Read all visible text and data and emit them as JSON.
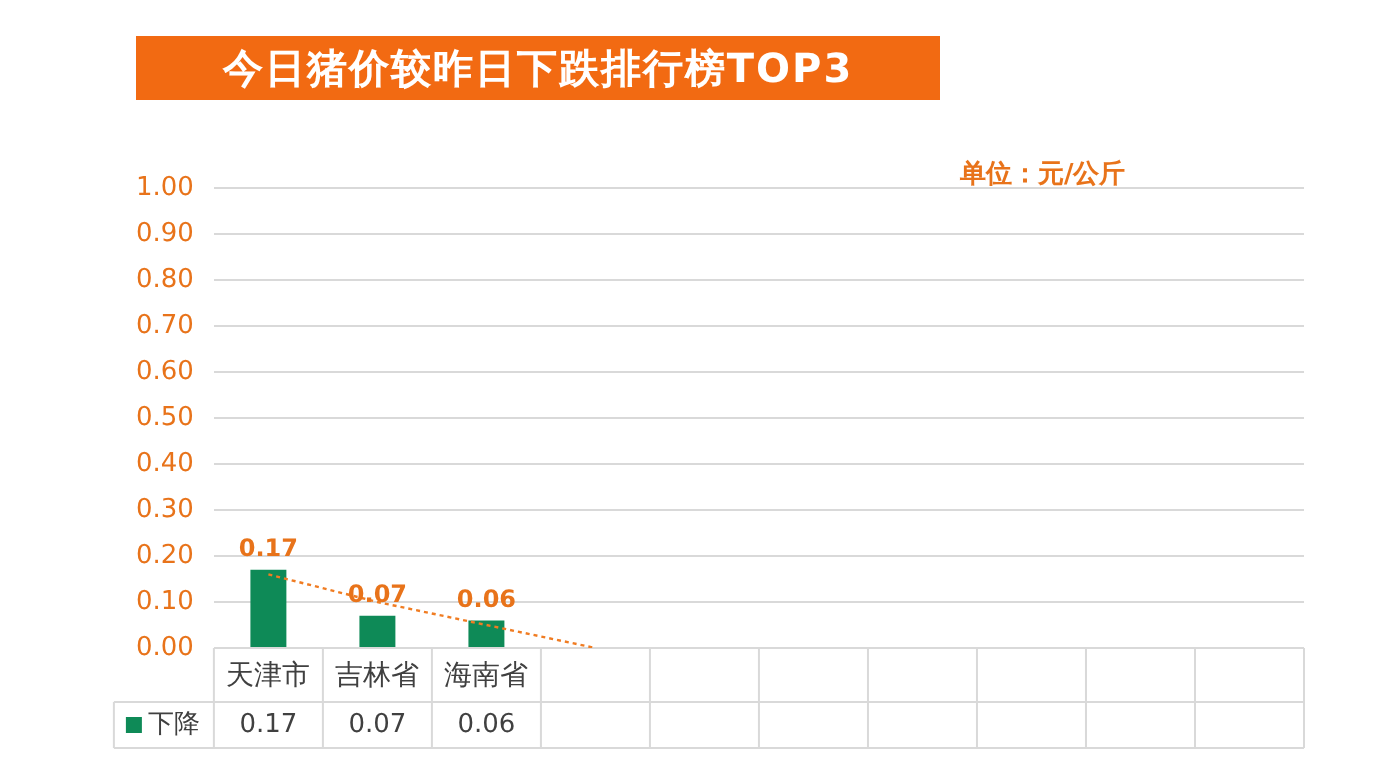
{
  "chart_data": {
    "type": "bar",
    "title": "今日猪价较昨日下跌排行榜TOP3",
    "annotations": [
      "单位：元/公斤"
    ],
    "categories": [
      "天津市",
      "吉林省",
      "海南省",
      null,
      null,
      null,
      null,
      null,
      null,
      null
    ],
    "series": [
      {
        "name": "下降",
        "color": "#0e8a57",
        "values": [
          0.17,
          0.07,
          0.06,
          null,
          null,
          null,
          null,
          null,
          null,
          null
        ],
        "value_labels": [
          "0.17",
          "0.07",
          "0.06",
          null,
          null,
          null,
          null,
          null,
          null,
          null
        ]
      },
      {
        "type": "line",
        "color": "#f07c22",
        "line_style": "dotted",
        "marker": "none",
        "values": [
          0.16,
          0.1,
          0.05,
          0,
          null,
          null,
          null,
          null,
          null,
          null
        ]
      }
    ],
    "ylim": [
      0,
      1
    ],
    "yticks": [
      {
        "value": 0,
        "label": "0.00"
      },
      {
        "value": 0.1,
        "label": "0.10"
      },
      {
        "value": 0.2,
        "label": "0.20"
      },
      {
        "value": 0.3,
        "label": "0.30"
      },
      {
        "value": 0.4,
        "label": "0.40"
      },
      {
        "value": 0.5,
        "label": "0.50"
      },
      {
        "value": 0.6,
        "label": "0.60"
      },
      {
        "value": 0.7,
        "label": "0.70"
      },
      {
        "value": 0.8,
        "label": "0.80"
      },
      {
        "value": 0.9,
        "label": "0.90"
      },
      {
        "value": 1,
        "label": "1.00"
      }
    ],
    "grid": "y",
    "legend": "bottom"
  }
}
